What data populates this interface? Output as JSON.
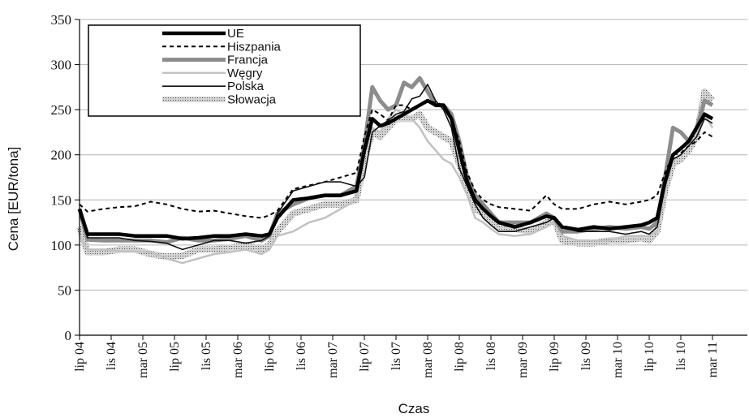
{
  "chart_data": {
    "type": "line",
    "xlabel": "Czas",
    "ylabel": "Cena [EUR/tona]",
    "ylim": [
      0,
      350
    ],
    "yticks": [
      0,
      50,
      100,
      150,
      200,
      250,
      300,
      350
    ],
    "grid": "horizontal",
    "legend": "top-left",
    "tick_labels": [
      "lip 04",
      "lis 04",
      "mar 05",
      "lip 05",
      "lis 05",
      "mar 06",
      "lip 06",
      "lis 06",
      "mar 07",
      "lip 07",
      "lis 07",
      "mar 08",
      "lip 08",
      "lis 08",
      "mar 09",
      "lip 09",
      "lis 09",
      "mar 10",
      "lip 10",
      "lis 10",
      "mar 11"
    ],
    "x_dates": [
      "2004-07",
      "2004-08",
      "2004-10",
      "2004-12",
      "2005-02",
      "2005-04",
      "2005-06",
      "2005-08",
      "2005-10",
      "2005-12",
      "2006-02",
      "2006-04",
      "2006-06",
      "2006-07",
      "2006-08",
      "2006-10",
      "2006-12",
      "2007-02",
      "2007-04",
      "2007-06",
      "2007-07",
      "2007-08",
      "2007-09",
      "2007-10",
      "2007-11",
      "2007-12",
      "2008-01",
      "2008-02",
      "2008-03",
      "2008-04",
      "2008-05",
      "2008-06",
      "2008-07",
      "2008-08",
      "2008-09",
      "2008-10",
      "2008-11",
      "2008-12",
      "2009-02",
      "2009-04",
      "2009-06",
      "2009-07",
      "2009-08",
      "2009-10",
      "2009-12",
      "2010-02",
      "2010-04",
      "2010-06",
      "2010-07",
      "2010-08",
      "2010-09",
      "2010-10",
      "2010-11",
      "2010-12",
      "2011-01",
      "2011-02",
      "2011-03"
    ],
    "series": [
      {
        "name": "UE",
        "style": "thick-black",
        "values": [
          140,
          112,
          112,
          112,
          110,
          110,
          110,
          107,
          108,
          110,
          110,
          112,
          110,
          112,
          130,
          150,
          152,
          155,
          155,
          160,
          205,
          240,
          232,
          235,
          240,
          245,
          250,
          255,
          260,
          255,
          255,
          240,
          205,
          170,
          150,
          140,
          132,
          125,
          120,
          125,
          132,
          130,
          120,
          117,
          120,
          118,
          120,
          122,
          125,
          130,
          170,
          200,
          207,
          215,
          230,
          245,
          240
        ]
      },
      {
        "name": "Hiszpania",
        "style": "dashed-black",
        "values": [
          145,
          137,
          140,
          142,
          143,
          148,
          145,
          140,
          137,
          138,
          135,
          132,
          130,
          133,
          138,
          162,
          166,
          170,
          175,
          180,
          220,
          250,
          245,
          238,
          255,
          255,
          250,
          255,
          260,
          258,
          255,
          240,
          215,
          180,
          160,
          150,
          145,
          142,
          140,
          138,
          155,
          145,
          140,
          140,
          145,
          148,
          145,
          148,
          150,
          155,
          180,
          200,
          202,
          210,
          215,
          225,
          220
        ]
      },
      {
        "name": "Francja",
        "style": "thick-gray",
        "values": [
          140,
          106,
          105,
          105,
          105,
          105,
          103,
          108,
          105,
          105,
          107,
          110,
          105,
          110,
          135,
          145,
          152,
          155,
          155,
          165,
          210,
          275,
          260,
          250,
          255,
          280,
          275,
          285,
          270,
          255,
          255,
          245,
          215,
          175,
          155,
          145,
          135,
          125,
          125,
          125,
          135,
          130,
          115,
          115,
          118,
          120,
          118,
          120,
          118,
          125,
          175,
          230,
          225,
          215,
          230,
          260,
          255
        ]
      },
      {
        "name": "Węgry",
        "style": "light-gray",
        "values": [
          110,
          95,
          95,
          93,
          93,
          92,
          85,
          80,
          85,
          90,
          92,
          95,
          90,
          95,
          110,
          115,
          125,
          130,
          140,
          150,
          200,
          230,
          225,
          240,
          250,
          245,
          240,
          230,
          215,
          205,
          195,
          190,
          175,
          155,
          130,
          125,
          118,
          112,
          110,
          112,
          120,
          125,
          110,
          105,
          105,
          105,
          110,
          110,
          110,
          115,
          160,
          195,
          200,
          210,
          220,
          245,
          230
        ]
      },
      {
        "name": "Polska",
        "style": "thin-black",
        "values": [
          140,
          108,
          108,
          108,
          105,
          104,
          102,
          95,
          100,
          105,
          105,
          102,
          105,
          110,
          135,
          160,
          165,
          170,
          170,
          165,
          175,
          225,
          232,
          238,
          245,
          248,
          262,
          265,
          278,
          260,
          250,
          230,
          185,
          165,
          145,
          130,
          122,
          115,
          115,
          120,
          125,
          130,
          120,
          115,
          115,
          115,
          112,
          115,
          112,
          120,
          165,
          195,
          200,
          210,
          220,
          240,
          235
        ]
      },
      {
        "name": "Słowacja",
        "style": "dotted-band",
        "values": [
          120,
          92,
          92,
          95,
          95,
          90,
          87,
          88,
          95,
          95,
          97,
          100,
          95,
          100,
          115,
          135,
          140,
          145,
          145,
          150,
          195,
          225,
          220,
          230,
          240,
          240,
          240,
          245,
          230,
          225,
          220,
          215,
          190,
          165,
          140,
          135,
          128,
          120,
          118,
          115,
          125,
          128,
          105,
          102,
          102,
          105,
          105,
          108,
          105,
          115,
          160,
          190,
          195,
          205,
          220,
          270,
          260
        ]
      }
    ]
  }
}
